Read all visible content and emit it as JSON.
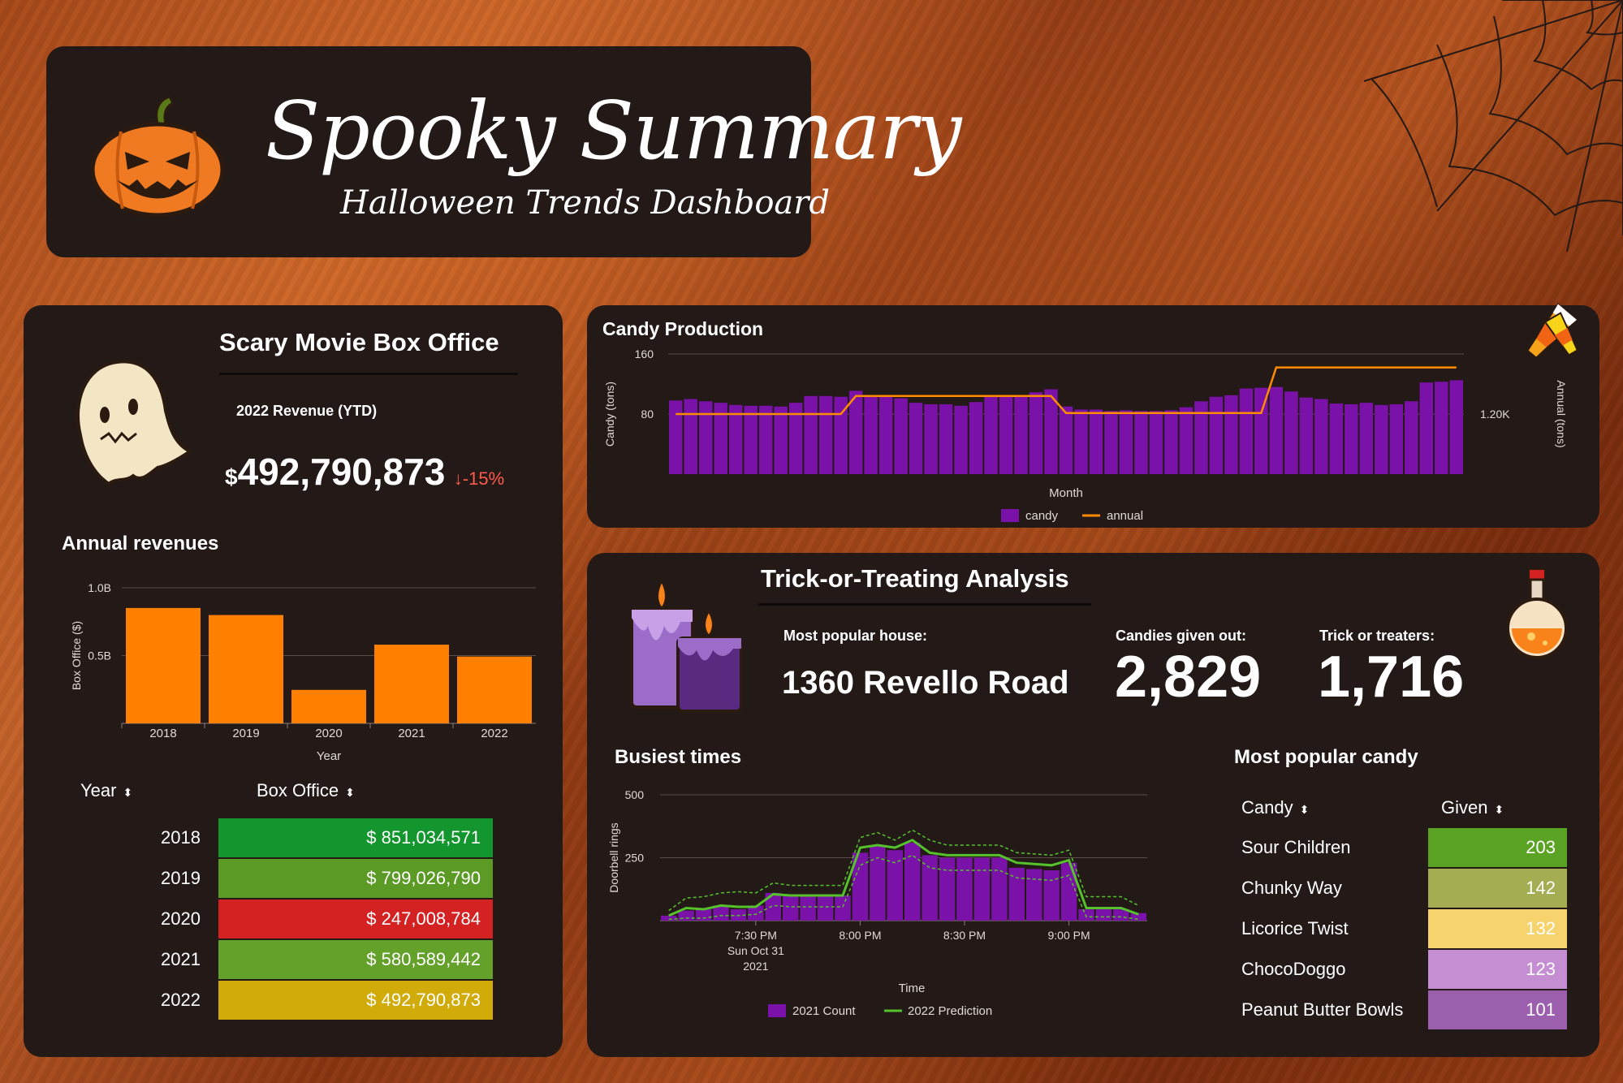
{
  "header": {
    "title": "Spooky Summary",
    "subtitle": "Halloween Trends Dashboard"
  },
  "box_office": {
    "title": "Scary Movie Box Office",
    "kpi_label": "2022 Revenue (YTD)",
    "currency": "$",
    "kpi_value": "492,790,873",
    "kpi_change": "-15%",
    "annual_title": "Annual revenues",
    "table_headers": {
      "year": "Year",
      "box_office": "Box Office"
    },
    "table_rows": [
      {
        "year": "2018",
        "value": "$ 851,034,571",
        "color": "#13962d"
      },
      {
        "year": "2019",
        "value": "$ 799,026,790",
        "color": "#5a9a25"
      },
      {
        "year": "2020",
        "value": "$ 247,008,784",
        "color": "#d42121"
      },
      {
        "year": "2021",
        "value": "$ 580,589,442",
        "color": "#63a12b"
      },
      {
        "year": "2022",
        "value": "$ 492,790,873",
        "color": "#d1ab0a"
      }
    ]
  },
  "trick": {
    "title": "Trick-or-Treating Analysis",
    "house_label": "Most popular house:",
    "house_value": "1360 Revello Road",
    "candies_label": "Candies given out:",
    "candies_value": "2,829",
    "treaters_label": "Trick or treaters:",
    "treaters_value": "1,716",
    "busiest_title": "Busiest times",
    "popular_title": "Most popular candy",
    "candy_headers": {
      "candy": "Candy",
      "given": "Given"
    },
    "candy_rows": [
      {
        "name": "Sour Children",
        "given": "203",
        "color": "#5aa325"
      },
      {
        "name": "Chunky Way",
        "given": "142",
        "color": "#a4ad52"
      },
      {
        "name": "Licorice Twist",
        "given": "132",
        "color": "#f7d36e"
      },
      {
        "name": "ChocoDoggo",
        "given": "123",
        "color": "#c58ed2"
      },
      {
        "name": "Peanut Butter Bowls",
        "given": "101",
        "color": "#9b5fad"
      }
    ]
  },
  "icons": [
    "pumpkin-icon",
    "ghost-icon",
    "spider-web-icon",
    "candy-corn-icon",
    "candles-icon",
    "potion-icon",
    "sort-icon",
    "down-arrow-icon"
  ],
  "colors": {
    "panel": "#231a18",
    "orange": "#ff7f00",
    "purple": "#7a11a8",
    "green": "#5ec22c",
    "negative": "#ff5a4a"
  },
  "chart_data": [
    {
      "id": "annual",
      "type": "bar",
      "categories": [
        "2018",
        "2019",
        "2020",
        "2021",
        "2022"
      ],
      "values": [
        851034571,
        799026790,
        247008784,
        580589442,
        492790873
      ],
      "xlabel": "Year",
      "ylabel": "Box Office ($)",
      "ylim": [
        0,
        1000000000
      ],
      "yticks": [
        {
          "v": 500000000,
          "label": "0.5B"
        },
        {
          "v": 1000000000,
          "label": "1.0B"
        }
      ],
      "grid": true,
      "color": "#ff7f00"
    },
    {
      "id": "candy",
      "type": "bar",
      "title": "Candy Production",
      "xlabel": "Month",
      "ylabel": "Candy (tons)",
      "y2label": "Annual (tons)",
      "ylim": [
        0,
        160
      ],
      "yticks": [
        80,
        160
      ],
      "y2lim": [
        0,
        2400
      ],
      "y2ticks": [
        {
          "v": 1200,
          "label": "1.20K"
        }
      ],
      "legend_position": "bottom",
      "series": [
        {
          "name": "candy",
          "type": "bar",
          "color": "#7a11a8",
          "values": [
            98,
            100,
            97,
            95,
            92,
            91,
            91,
            90,
            95,
            104,
            104,
            103,
            111,
            103,
            103,
            101,
            95,
            93,
            93,
            91,
            96,
            103,
            104,
            104,
            109,
            113,
            90,
            86,
            86,
            84,
            85,
            84,
            84,
            85,
            89,
            97,
            103,
            105,
            114,
            115,
            116,
            110,
            102,
            100,
            94,
            93,
            95,
            92,
            93,
            97,
            122,
            123,
            125
          ]
        },
        {
          "name": "annual",
          "type": "line",
          "color": "#ff8c00",
          "values": [
            1200,
            1200,
            1200,
            1200,
            1200,
            1200,
            1200,
            1200,
            1200,
            1200,
            1200,
            1200,
            1560,
            1560,
            1560,
            1560,
            1560,
            1560,
            1560,
            1560,
            1560,
            1560,
            1560,
            1560,
            1560,
            1560,
            1220,
            1220,
            1220,
            1220,
            1220,
            1220,
            1220,
            1220,
            1220,
            1220,
            1220,
            1220,
            1220,
            1220,
            2130,
            2130,
            2130,
            2130,
            2130,
            2130,
            2130,
            2130,
            2130,
            2130,
            2130,
            2130,
            2130
          ]
        }
      ]
    },
    {
      "id": "busiest",
      "type": "bar",
      "xlabel": "Time",
      "ylabel": "Doorbell rings",
      "ylim": [
        0,
        500
      ],
      "yticks": [
        250,
        500
      ],
      "xtick_labels": [
        {
          "i": 5,
          "lines": [
            "7:30 PM",
            "Sun Oct 31",
            "2021"
          ]
        },
        {
          "i": 11,
          "lines": [
            "8:00 PM"
          ]
        },
        {
          "i": 17,
          "lines": [
            "8:30 PM"
          ]
        },
        {
          "i": 23,
          "lines": [
            "9:00 PM"
          ]
        }
      ],
      "legend_position": "bottom",
      "series": [
        {
          "name": "2021 Count",
          "type": "bar",
          "color": "#7a11a8",
          "values": [
            20,
            40,
            45,
            60,
            45,
            60,
            110,
            100,
            100,
            100,
            100,
            270,
            300,
            280,
            310,
            260,
            250,
            250,
            250,
            250,
            210,
            205,
            200,
            230,
            45,
            45,
            45,
            30
          ]
        },
        {
          "name": "2022 Prediction",
          "type": "line",
          "color": "#55c22c",
          "values": [
            20,
            50,
            45,
            60,
            55,
            55,
            105,
            100,
            100,
            100,
            100,
            290,
            300,
            290,
            320,
            270,
            260,
            260,
            260,
            260,
            230,
            225,
            220,
            240,
            50,
            50,
            50,
            25
          ],
          "band_upper": [
            40,
            90,
            95,
            110,
            115,
            110,
            150,
            140,
            140,
            140,
            140,
            330,
            350,
            320,
            360,
            320,
            300,
            300,
            300,
            300,
            270,
            265,
            260,
            280,
            95,
            95,
            95,
            60
          ],
          "band_lower": [
            5,
            10,
            10,
            20,
            20,
            25,
            60,
            55,
            55,
            55,
            55,
            220,
            250,
            230,
            260,
            210,
            200,
            200,
            200,
            200,
            170,
            165,
            160,
            180,
            15,
            15,
            15,
            5
          ]
        }
      ]
    }
  ]
}
